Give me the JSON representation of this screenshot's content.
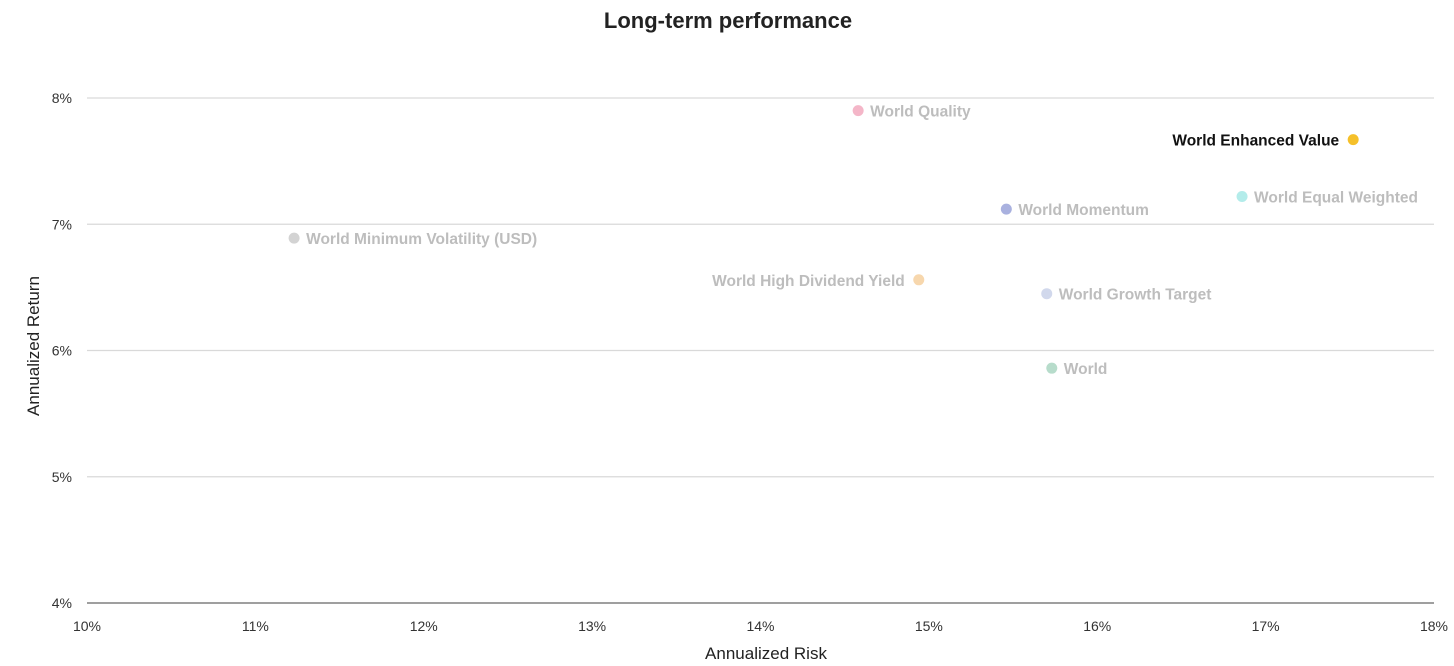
{
  "chart_data": {
    "type": "scatter",
    "title": "Long-term performance",
    "xlabel": "Annualized Risk",
    "ylabel": "Annualized Return",
    "xlim": [
      10,
      18
    ],
    "ylim": [
      4,
      8
    ],
    "x_ticks": [
      "10%",
      "11%",
      "12%",
      "13%",
      "14%",
      "15%",
      "16%",
      "17%",
      "18%"
    ],
    "y_ticks": [
      "4%",
      "5%",
      "6%",
      "7%",
      "8%"
    ],
    "grid": "horizontal",
    "legend": "none",
    "highlighted_series": "World Enhanced Value",
    "points": [
      {
        "name": "World Quality",
        "x": 14.58,
        "y": 7.9,
        "color": "#f4b6c8",
        "label_color": "#bdbdbd",
        "label_side": "right"
      },
      {
        "name": "World Enhanced Value",
        "x": 17.52,
        "y": 7.67,
        "color": "#f5c02a",
        "label_color": "#111111",
        "label_side": "left"
      },
      {
        "name": "World Equal Weighted",
        "x": 16.86,
        "y": 7.22,
        "color": "#b3ecea",
        "label_color": "#bdbdbd",
        "label_side": "right"
      },
      {
        "name": "World Momentum",
        "x": 15.46,
        "y": 7.12,
        "color": "#a9b1df",
        "label_color": "#bdbdbd",
        "label_side": "right"
      },
      {
        "name": "World Minimum Volatility (USD)",
        "x": 11.23,
        "y": 6.89,
        "color": "#d3d3d3",
        "label_color": "#bdbdbd",
        "label_side": "right"
      },
      {
        "name": "World High Dividend Yield",
        "x": 14.94,
        "y": 6.56,
        "color": "#f7d7ad",
        "label_color": "#bdbdbd",
        "label_side": "left"
      },
      {
        "name": "World Growth Target",
        "x": 15.7,
        "y": 6.45,
        "color": "#d1d8ec",
        "label_color": "#bdbdbd",
        "label_side": "right"
      },
      {
        "name": "World",
        "x": 15.73,
        "y": 5.86,
        "color": "#b7dccb",
        "label_color": "#bdbdbd",
        "label_side": "right"
      }
    ]
  }
}
